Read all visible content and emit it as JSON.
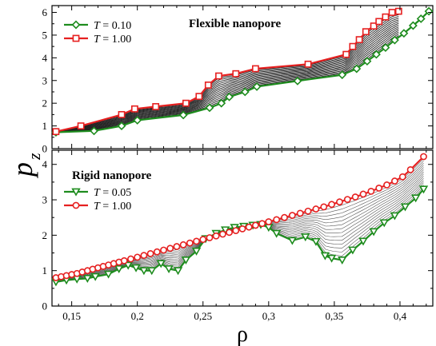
{
  "chart_data": [
    {
      "type": "line",
      "title": "Flexible nanopore",
      "ylabel": "p",
      "ylabel_sub": "z",
      "xlim": [
        0.135,
        0.425
      ],
      "ylim": [
        0,
        6.3
      ],
      "yticks": [
        "0",
        "1",
        "2",
        "3",
        "4",
        "5",
        "6"
      ],
      "grid": false,
      "legend_position": "top-left",
      "series": [
        {
          "name": "T = 0.10",
          "legend_var": "T",
          "legend_value": "= 0.10",
          "color": "#1e8c1e",
          "marker": "diamond",
          "x": [
            0.138,
            0.167,
            0.188,
            0.2,
            0.235,
            0.255,
            0.264,
            0.27,
            0.282,
            0.291,
            0.322,
            0.356,
            0.367,
            0.375,
            0.382,
            0.389,
            0.396,
            0.403,
            0.41,
            0.416,
            0.422
          ],
          "y": [
            0.72,
            0.78,
            1.0,
            1.25,
            1.48,
            1.8,
            2.0,
            2.28,
            2.5,
            2.73,
            2.98,
            3.25,
            3.52,
            3.85,
            4.15,
            4.45,
            4.78,
            5.08,
            5.42,
            5.72,
            6.05
          ]
        },
        {
          "name": "T = 1.00",
          "legend_var": "T",
          "legend_value": "= 1.00",
          "color": "#e62020",
          "marker": "square",
          "x": [
            0.138,
            0.157,
            0.188,
            0.198,
            0.214,
            0.237,
            0.247,
            0.254,
            0.262,
            0.275,
            0.29,
            0.33,
            0.359,
            0.364,
            0.369,
            0.374,
            0.38,
            0.384,
            0.389,
            0.394,
            0.399
          ],
          "y": [
            0.75,
            1.0,
            1.5,
            1.75,
            1.85,
            2.0,
            2.3,
            2.8,
            3.2,
            3.3,
            3.52,
            3.72,
            4.15,
            4.5,
            4.8,
            5.15,
            5.4,
            5.6,
            5.8,
            6.0,
            6.05
          ]
        }
      ]
    },
    {
      "type": "line",
      "title": "Rigid nanopore",
      "xlabel": "ρ",
      "xlim": [
        0.135,
        0.425
      ],
      "ylim": [
        0,
        4.4
      ],
      "xticks": [
        "0,15",
        "0,2",
        "0,25",
        "0,3",
        "0,35",
        "0,4"
      ],
      "xtick_values": [
        0.15,
        0.2,
        0.25,
        0.3,
        0.35,
        0.4
      ],
      "yticks": [
        "0",
        "1",
        "2",
        "3",
        "4"
      ],
      "grid": false,
      "legend_position": "top-left",
      "series": [
        {
          "name": "T = 0.05",
          "legend_var": "T",
          "legend_value": "= 0.05",
          "color": "#1e8c1e",
          "marker": "triangle-down",
          "x": [
            0.138,
            0.146,
            0.154,
            0.162,
            0.168,
            0.178,
            0.186,
            0.193,
            0.199,
            0.205,
            0.211,
            0.218,
            0.224,
            0.231,
            0.237,
            0.245,
            0.252,
            0.26,
            0.267,
            0.274,
            0.281,
            0.288,
            0.294,
            0.3,
            0.306,
            0.318,
            0.328,
            0.336,
            0.343,
            0.348,
            0.356,
            0.364,
            0.372,
            0.38,
            0.388,
            0.396,
            0.404,
            0.412,
            0.418
          ],
          "y": [
            0.68,
            0.73,
            0.76,
            0.78,
            0.83,
            0.9,
            1.05,
            1.15,
            1.08,
            1.0,
            1.0,
            1.2,
            1.05,
            1.0,
            1.3,
            1.55,
            1.9,
            2.05,
            2.15,
            2.22,
            2.25,
            2.28,
            2.3,
            2.22,
            2.05,
            1.85,
            1.95,
            1.82,
            1.42,
            1.35,
            1.3,
            1.58,
            1.83,
            2.1,
            2.35,
            2.55,
            2.8,
            3.05,
            3.3
          ]
        },
        {
          "name": "T = 1.00",
          "legend_var": "T",
          "legend_value": "= 1.00",
          "color": "#e62020",
          "marker": "circle",
          "x": [
            0.138,
            0.142,
            0.146,
            0.15,
            0.154,
            0.158,
            0.162,
            0.166,
            0.17,
            0.174,
            0.178,
            0.182,
            0.186,
            0.19,
            0.195,
            0.2,
            0.205,
            0.21,
            0.215,
            0.22,
            0.225,
            0.23,
            0.235,
            0.24,
            0.245,
            0.25,
            0.255,
            0.26,
            0.265,
            0.27,
            0.275,
            0.28,
            0.285,
            0.29,
            0.295,
            0.3,
            0.306,
            0.312,
            0.318,
            0.324,
            0.33,
            0.336,
            0.342,
            0.348,
            0.354,
            0.36,
            0.366,
            0.372,
            0.378,
            0.384,
            0.39,
            0.396,
            0.402,
            0.408,
            0.418
          ],
          "y": [
            0.8,
            0.83,
            0.86,
            0.89,
            0.92,
            0.96,
            1.0,
            1.04,
            1.08,
            1.12,
            1.16,
            1.2,
            1.24,
            1.28,
            1.33,
            1.38,
            1.43,
            1.48,
            1.53,
            1.58,
            1.63,
            1.68,
            1.73,
            1.78,
            1.83,
            1.88,
            1.93,
            1.98,
            2.03,
            2.08,
            2.13,
            2.18,
            2.23,
            2.28,
            2.33,
            2.38,
            2.44,
            2.5,
            2.56,
            2.62,
            2.68,
            2.74,
            2.8,
            2.87,
            2.94,
            3.01,
            3.08,
            3.16,
            3.24,
            3.33,
            3.42,
            3.53,
            3.65,
            3.85,
            4.22
          ]
        }
      ]
    }
  ]
}
